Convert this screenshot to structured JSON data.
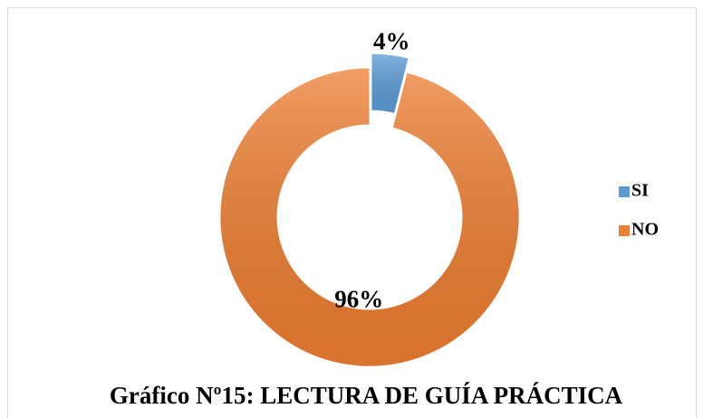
{
  "chart_data": {
    "type": "doughnut",
    "title": "Gráfico Nº15: LECTURA DE GUÍA PRÁCTICA",
    "categories": [
      "SI",
      "NO"
    ],
    "values": [
      4,
      96
    ],
    "value_labels": [
      "4%",
      "96%"
    ],
    "colors": [
      "#5b9bd5",
      "#ed7d31"
    ],
    "explode": [
      true,
      false
    ],
    "legend": "right"
  }
}
